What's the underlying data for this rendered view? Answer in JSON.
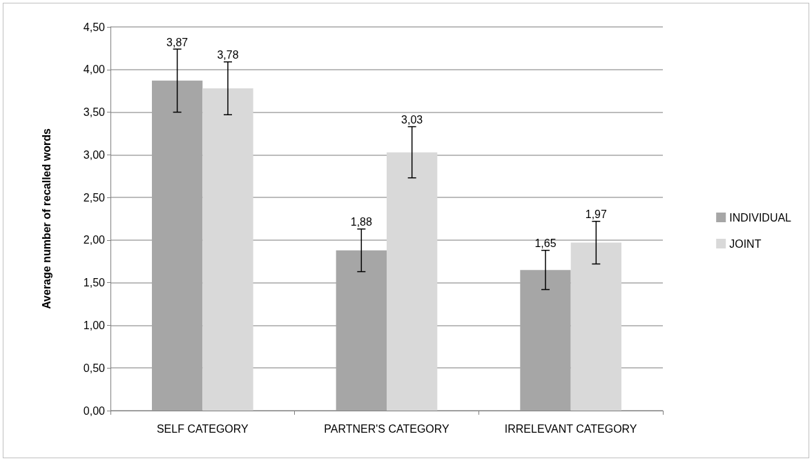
{
  "chart_data": {
    "type": "bar",
    "ylabel": "Average number of recalled words",
    "categories": [
      "SELF CATEGORY",
      "PARTNER'S CATEGORY",
      "IRRELEVANT CATEGORY"
    ],
    "series": [
      {
        "name": "INDIVIDUAL",
        "color": "#a6a6a6",
        "values": [
          3.87,
          1.88,
          1.65
        ],
        "errors": [
          0.37,
          0.25,
          0.23
        ],
        "value_labels": [
          "3,87",
          "1,88",
          "1,65"
        ]
      },
      {
        "name": "JOINT",
        "color": "#d9d9d9",
        "values": [
          3.78,
          3.03,
          1.97
        ],
        "errors": [
          0.31,
          0.3,
          0.25
        ],
        "value_labels": [
          "3,78",
          "3,03",
          "1,97"
        ]
      }
    ],
    "ylim": [
      0,
      4.5
    ],
    "yticks": [
      {
        "value": 0,
        "label": "0,00"
      },
      {
        "value": 0.5,
        "label": "0,50"
      },
      {
        "value": 1,
        "label": "1,00"
      },
      {
        "value": 1.5,
        "label": "1,50"
      },
      {
        "value": 2,
        "label": "2,00"
      },
      {
        "value": 2.5,
        "label": "2,50"
      },
      {
        "value": 3,
        "label": "3,00"
      },
      {
        "value": 3.5,
        "label": "3,50"
      },
      {
        "value": 4,
        "label": "4,00"
      },
      {
        "value": 4.5,
        "label": "4,50"
      }
    ],
    "grid": "y",
    "legend": "right"
  }
}
